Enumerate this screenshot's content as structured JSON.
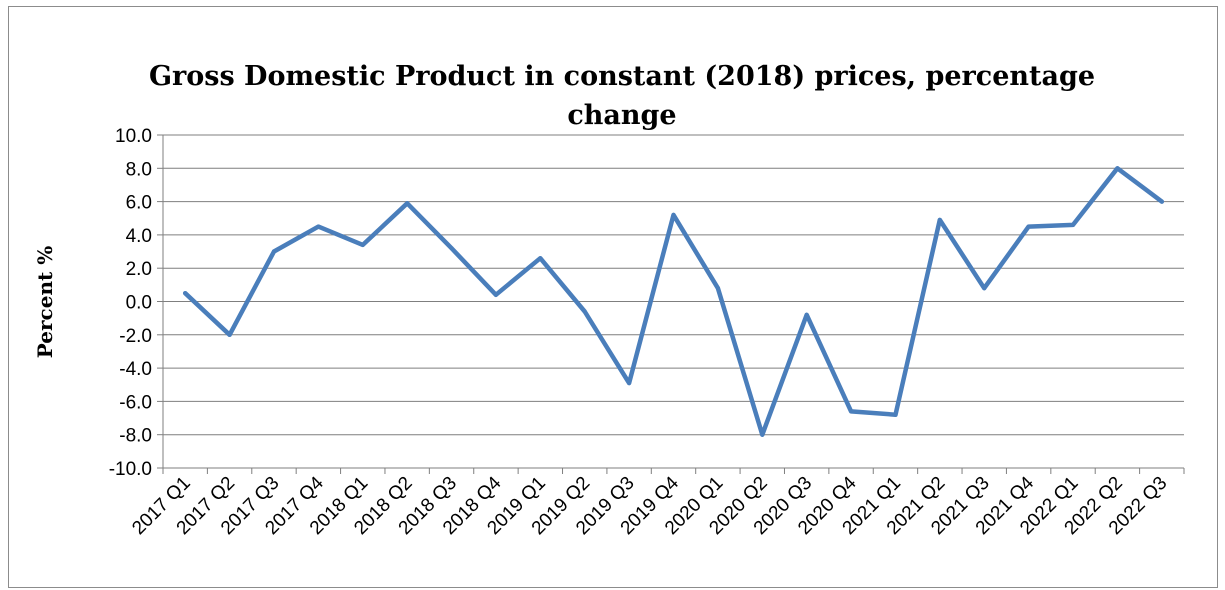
{
  "chart_data": {
    "type": "line",
    "title_line1": "Gross Domestic Product in constant (2018) prices, percentage",
    "title_line2": "change",
    "ylabel": "Percent %",
    "xlabel": "",
    "ylim": [
      -10,
      10
    ],
    "y_ticks": [
      "10.0",
      "8.0",
      "6.0",
      "4.0",
      "2.0",
      "0.0",
      "-2.0",
      "-4.0",
      "-6.0",
      "-8.0",
      "-10.0"
    ],
    "grid": true,
    "legend": "none",
    "categories": [
      "2017 Q1",
      "2017 Q2",
      "2017 Q3",
      "2017 Q4",
      "2018 Q1",
      "2018 Q2",
      "2018 Q3",
      "2018 Q4",
      "2019 Q1",
      "2019 Q2",
      "2019 Q3",
      "2019 Q4",
      "2020 Q1",
      "2020 Q2",
      "2020 Q3",
      "2020 Q4",
      "2021 Q1",
      "2021 Q2",
      "2021 Q3",
      "2021 Q4",
      "2022 Q1",
      "2022 Q2",
      "2022 Q3"
    ],
    "values": [
      0.5,
      -2.0,
      3.0,
      4.5,
      3.4,
      5.9,
      3.2,
      0.4,
      2.6,
      -0.6,
      -4.9,
      5.2,
      0.8,
      -8.0,
      -0.8,
      -6.6,
      -6.8,
      4.9,
      0.8,
      4.5,
      4.6,
      8.0,
      6.0
    ],
    "line_color": "#4a7ebb",
    "grid_color": "#7f7f7f"
  }
}
